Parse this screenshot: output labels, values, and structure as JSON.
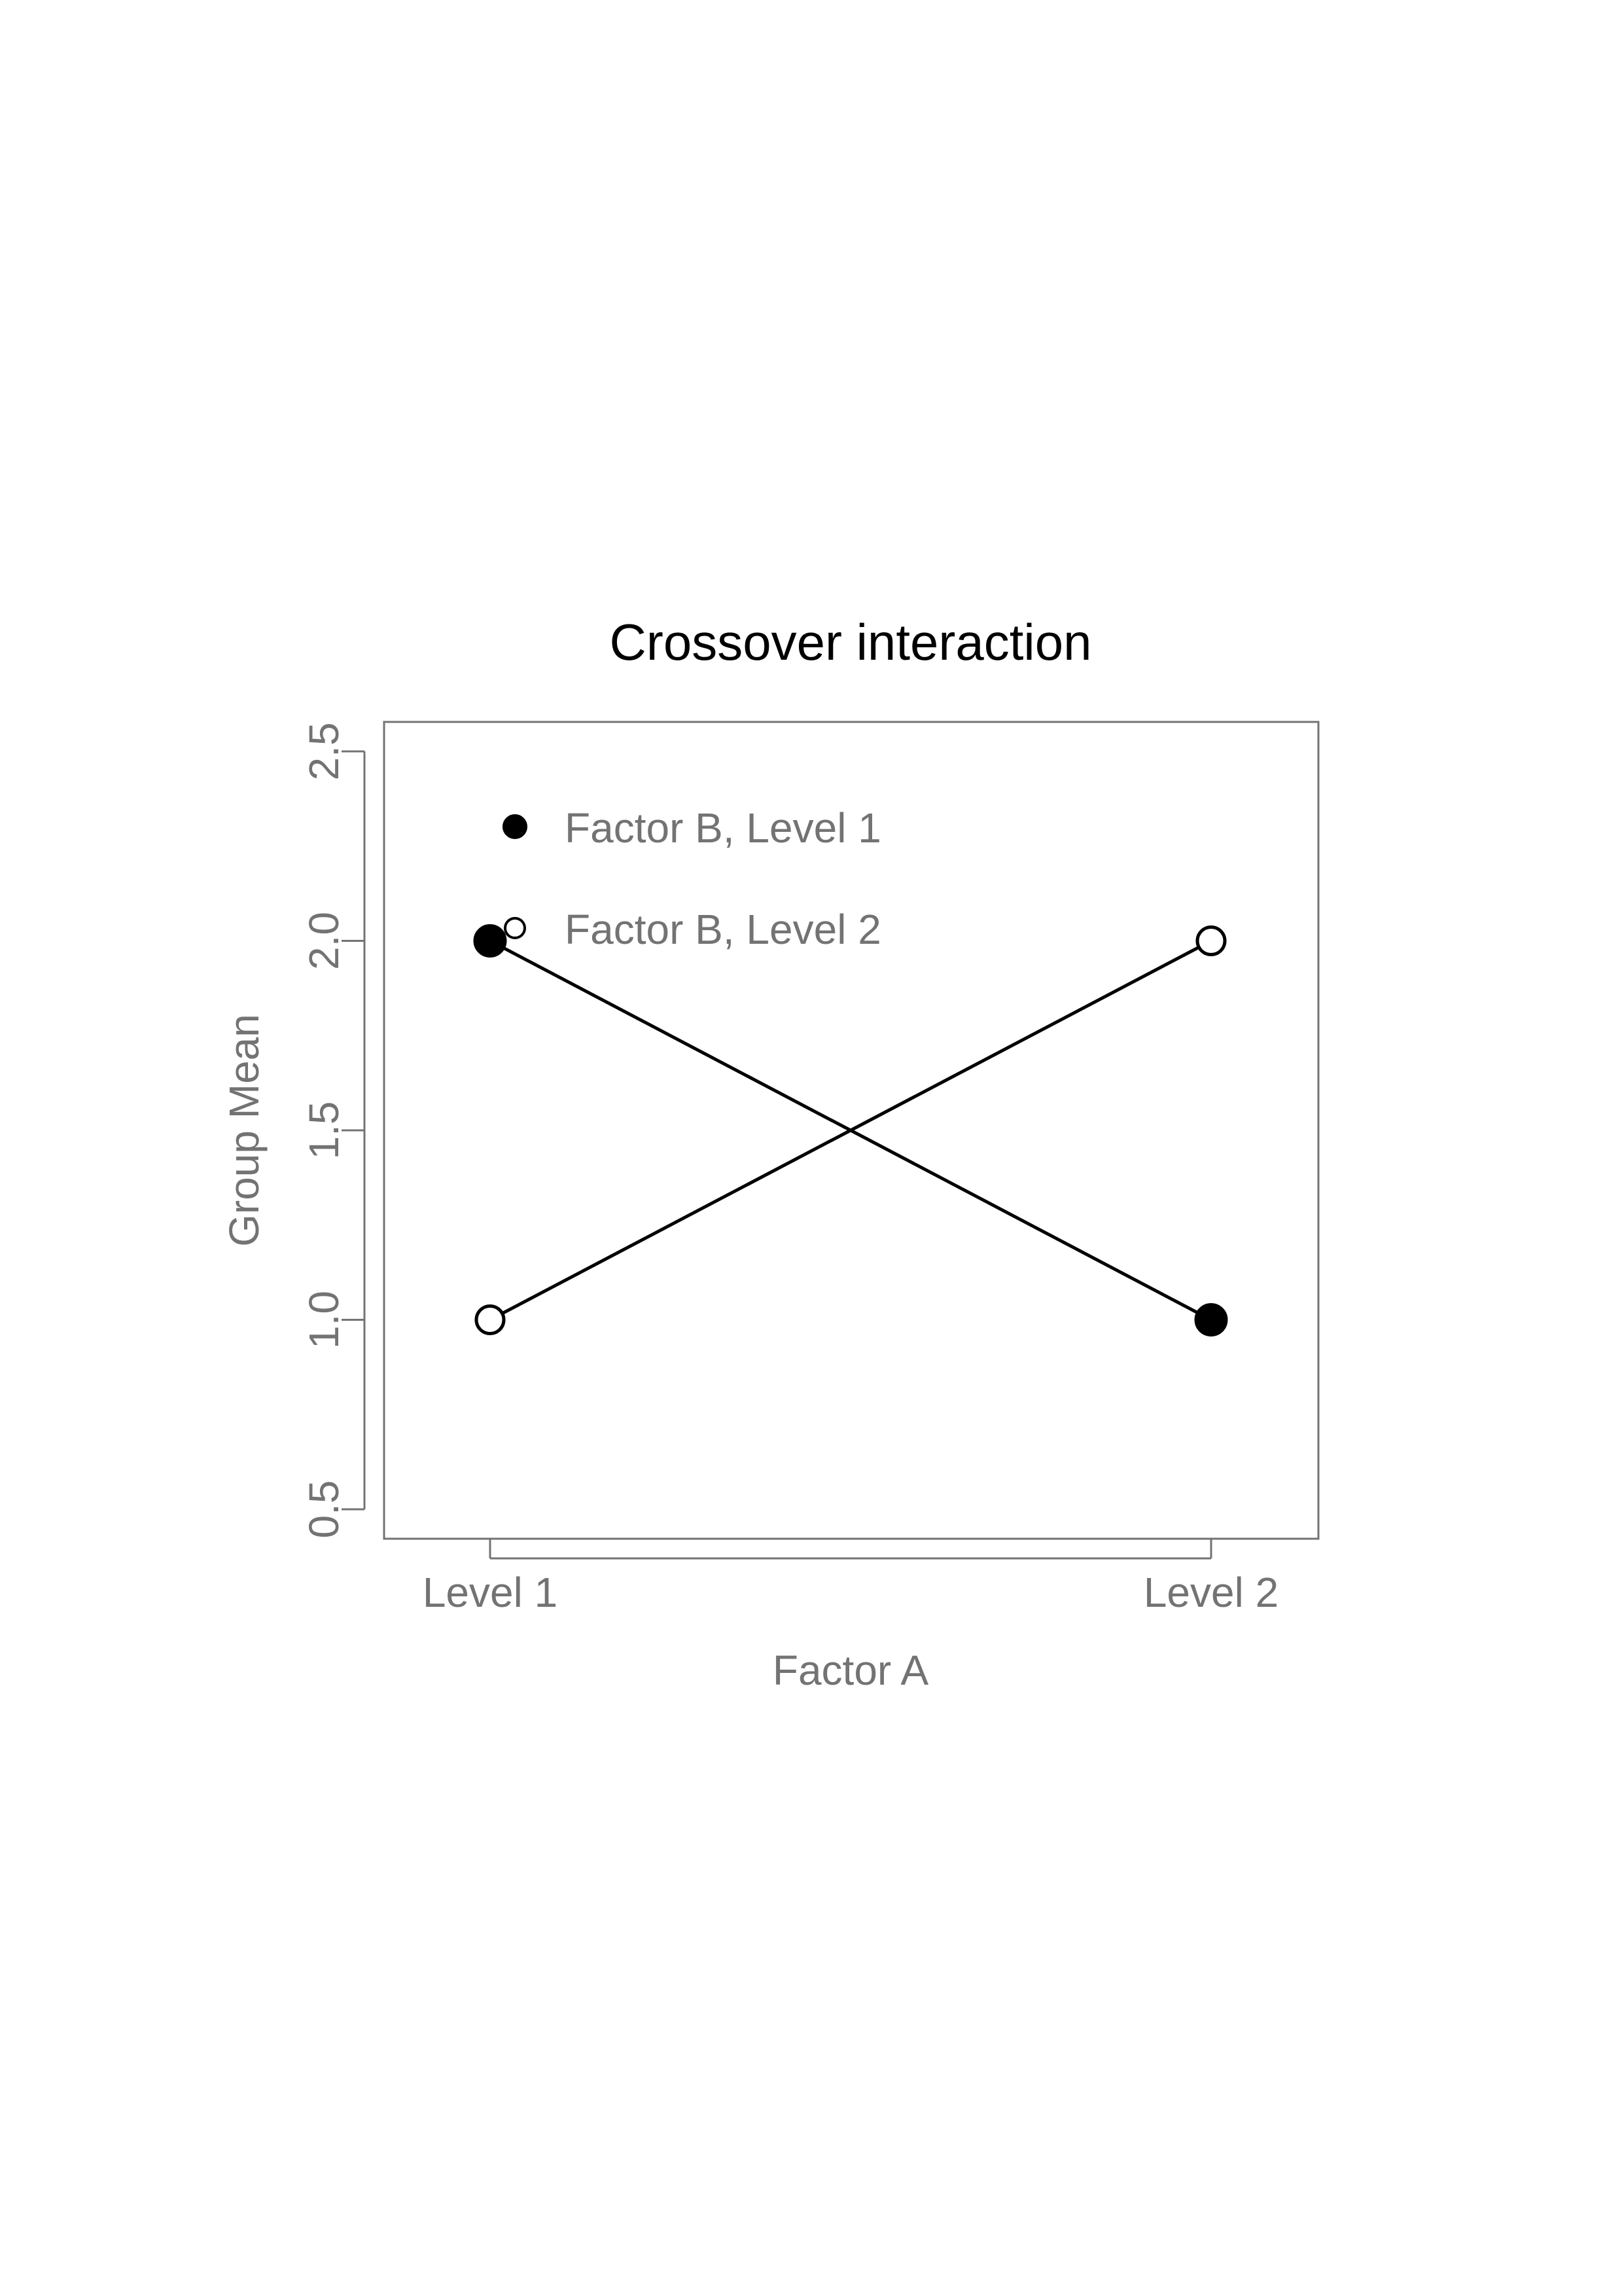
{
  "chart_data": {
    "type": "line",
    "title": "Crossover interaction",
    "xlabel": "Factor A",
    "ylabel": "Group Mean",
    "categories": [
      "Level 1",
      "Level 2"
    ],
    "ylim": [
      0.5,
      2.5
    ],
    "yticks": [
      "0.5",
      "1.0",
      "1.5",
      "2.0",
      "2.5"
    ],
    "grid": false,
    "legend": "top-left",
    "series": [
      {
        "name": "Factor B, Level 1",
        "values": [
          2.0,
          1.0
        ],
        "marker": "filled-circle"
      },
      {
        "name": "Factor B, Level 2",
        "values": [
          1.0,
          2.0
        ],
        "marker": "open-circle"
      }
    ],
    "colors": {
      "line": "#000000",
      "axis": "#737373",
      "title": "#000000"
    }
  }
}
